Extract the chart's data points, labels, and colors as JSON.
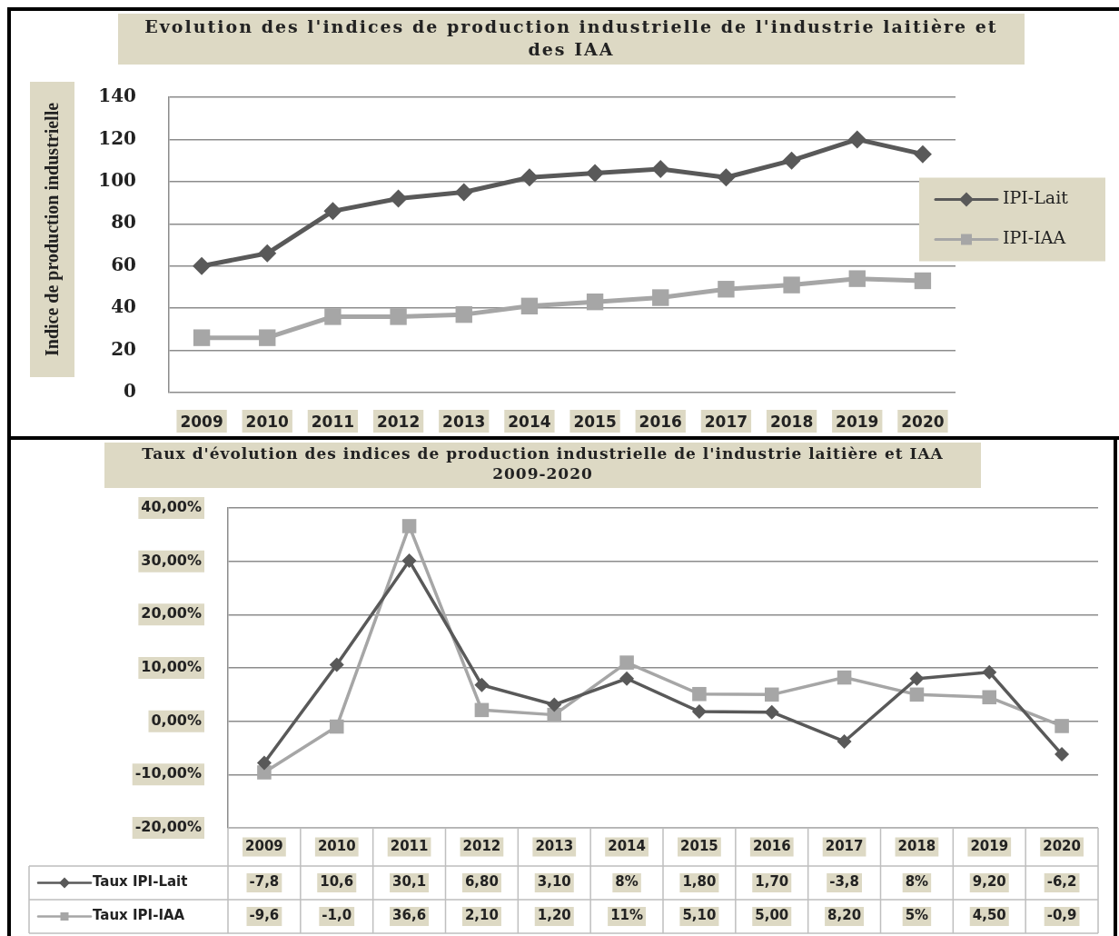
{
  "chart_data": [
    {
      "type": "line",
      "title": "Evolution des l'indices de production industrielle de l'industrie laitière et des IAA",
      "ylabel": "Indice de production industrielle",
      "categories": [
        "2009",
        "2010",
        "2011",
        "2012",
        "2013",
        "2014",
        "2015",
        "2016",
        "2017",
        "2018",
        "2019",
        "2020"
      ],
      "series": [
        {
          "name": "IPI-Lait",
          "color": "#595959",
          "marker": "diamond",
          "values": [
            60,
            66,
            86,
            92,
            95,
            102,
            104,
            106,
            102,
            110,
            120,
            113
          ]
        },
        {
          "name": "IPI-IAA",
          "color": "#a6a6a6",
          "marker": "square",
          "values": [
            26,
            26,
            36,
            36,
            37,
            41,
            43,
            45,
            49,
            51,
            54,
            53
          ]
        }
      ],
      "ylim": [
        0,
        140
      ],
      "yticks": [
        0,
        20,
        40,
        60,
        80,
        100,
        120,
        140
      ],
      "grid": "y",
      "legend": "right"
    },
    {
      "type": "line",
      "title": "Taux d'évolution des indices de production industrielle de l'industrie laitière et IAA 2009-2020",
      "categories": [
        "2009",
        "2010",
        "2011",
        "2012",
        "2013",
        "2014",
        "2015",
        "2016",
        "2017",
        "2018",
        "2019",
        "2020"
      ],
      "series": [
        {
          "name": "Taux IPI-Lait",
          "color": "#595959",
          "marker": "diamond",
          "values": [
            -7.8,
            10.6,
            30.1,
            6.8,
            3.1,
            8,
            1.8,
            1.7,
            -3.8,
            8,
            9.2,
            -6.2
          ],
          "value_labels": [
            "-7,8",
            "10,6",
            "30,1",
            "6,80",
            "3,10",
            "8%",
            "1,80",
            "1,70",
            "-3,8",
            "8%",
            "9,20",
            "-6,2"
          ]
        },
        {
          "name": "Taux IPI-IAA",
          "color": "#a6a6a6",
          "marker": "square",
          "values": [
            -9.6,
            -1.0,
            36.6,
            2.1,
            1.2,
            11,
            5.1,
            5.0,
            8.2,
            5,
            4.5,
            -0.9
          ],
          "value_labels": [
            "-9,6",
            "-1,0",
            "36,6",
            "2,10",
            "1,20",
            "11%",
            "5,10",
            "5,00",
            "8,20",
            "5%",
            "4,50",
            "-0,9"
          ]
        }
      ],
      "ylim": [
        -20,
        40
      ],
      "yticks": [
        {
          "value": -20,
          "label": "-20,00%"
        },
        {
          "value": -10,
          "label": "-10,00%"
        },
        {
          "value": 0,
          "label": "0,00%"
        },
        {
          "value": 10,
          "label": "10,00%"
        },
        {
          "value": 20,
          "label": "20,00%"
        },
        {
          "value": 30,
          "label": "30,00%"
        },
        {
          "value": 40,
          "label": "40,00%"
        }
      ],
      "grid": "y",
      "legend": "bottom"
    }
  ]
}
